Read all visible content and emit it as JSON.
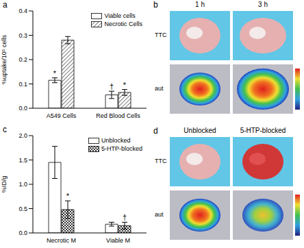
{
  "chart_data": [
    {
      "type": "bar",
      "panel": "a",
      "ylabel": "%uptake/10⁵ cells",
      "categories": [
        "A549 Cells",
        "Red Blood Cells"
      ],
      "series": [
        {
          "name": "Viable cells",
          "color": "#ffffff",
          "values": [
            0.115,
            0.055
          ],
          "errors": [
            0.01,
            0.015
          ]
        },
        {
          "name": "Necrotic Cells",
          "color": "#444444",
          "values": [
            0.28,
            0.065
          ],
          "errors": [
            0.015,
            0.012
          ]
        }
      ],
      "ylim": [
        0,
        0.4
      ],
      "yticks": [
        {
          "value": 0,
          "label": "0.0"
        },
        0.1,
        0.2,
        0.3,
        0.4
      ],
      "legend": "upper right",
      "annotations": [
        {
          "text": "*",
          "category": "A549 Cells",
          "series": "Viable cells"
        },
        {
          "text": "†",
          "category": "Red Blood Cells",
          "series": "Viable cells"
        },
        {
          "text": "*",
          "category": "Red Blood Cells",
          "series": "Necrotic Cells"
        }
      ]
    },
    {
      "type": "bar",
      "panel": "c",
      "ylabel": "%ID/g",
      "categories": [
        "Necrotic M",
        "Viable M"
      ],
      "series": [
        {
          "name": "Unblocked",
          "color": "#ffffff",
          "values": [
            1.45,
            0.18
          ],
          "errors": [
            0.33,
            0.04
          ]
        },
        {
          "name": "5-HTP-blocked",
          "color": "#333333",
          "values": [
            0.48,
            0.15
          ],
          "errors": [
            0.18,
            0.07
          ]
        }
      ],
      "ylim": [
        0,
        2
      ],
      "yticks": [
        {
          "value": 0,
          "label": "0.0"
        },
        0.5,
        {
          "value": 1,
          "label": "1.0"
        },
        1.5,
        {
          "value": 2,
          "label": "2.0"
        }
      ],
      "legend": "upper right",
      "annotations": [
        {
          "text": "*",
          "category": "Necrotic M",
          "series": "5-HTP-blocked"
        },
        {
          "text": "†",
          "category": "Viable M",
          "series": "5-HTP-blocked"
        }
      ]
    }
  ],
  "images": [
    {
      "panel": "b",
      "columns": [
        "1 h",
        "3 h"
      ],
      "rows": [
        "TTC",
        "aut"
      ]
    },
    {
      "panel": "d",
      "columns": [
        "Unblocked",
        "5-HTP-blocked"
      ],
      "rows": [
        "TTC",
        "aut"
      ]
    }
  ]
}
